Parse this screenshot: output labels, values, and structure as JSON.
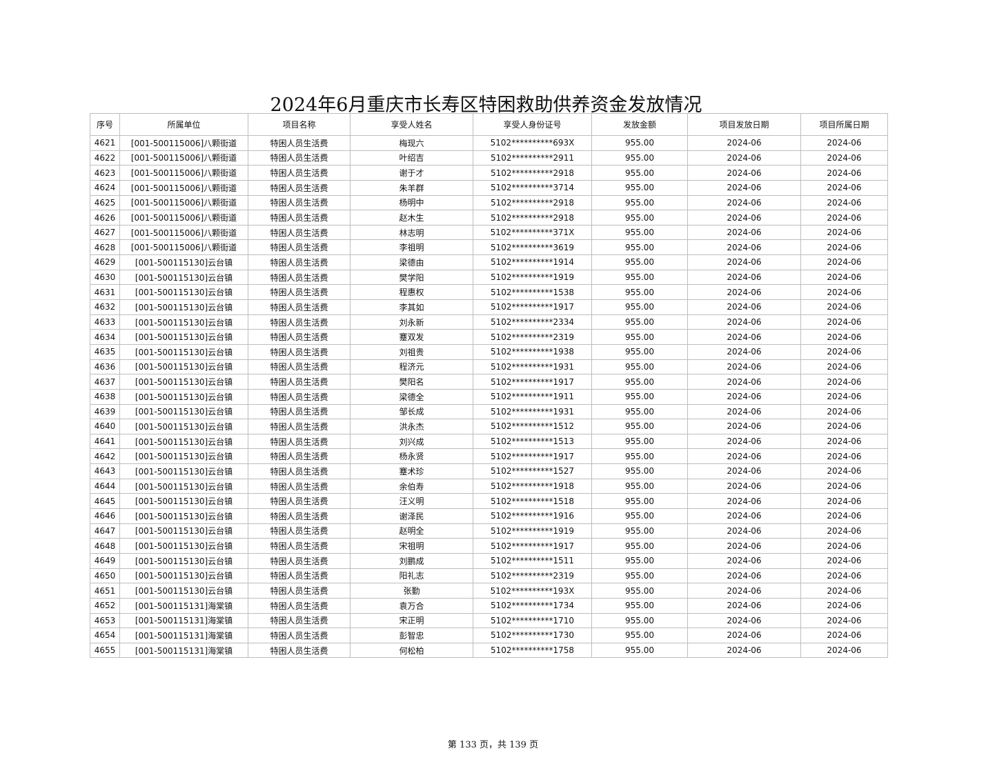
{
  "title": "2024年6月重庆市长寿区特困救助供养资金发放情况",
  "table": {
    "headers": [
      "序号",
      "所属单位",
      "项目名称",
      "享受人姓名",
      "享受人身份证号",
      "发放金额",
      "项目发放日期",
      "项目所属日期"
    ],
    "rows": [
      [
        "4621",
        "[001-500115006]八颗街道",
        "特困人员生活费",
        "梅现六",
        "5102**********693X",
        "955.00",
        "2024-06",
        "2024-06"
      ],
      [
        "4622",
        "[001-500115006]八颗街道",
        "特困人员生活费",
        "叶绍吉",
        "5102**********2911",
        "955.00",
        "2024-06",
        "2024-06"
      ],
      [
        "4623",
        "[001-500115006]八颗街道",
        "特困人员生活费",
        "谢于才",
        "5102**********2918",
        "955.00",
        "2024-06",
        "2024-06"
      ],
      [
        "4624",
        "[001-500115006]八颗街道",
        "特困人员生活费",
        "朱羊群",
        "5102**********3714",
        "955.00",
        "2024-06",
        "2024-06"
      ],
      [
        "4625",
        "[001-500115006]八颗街道",
        "特困人员生活费",
        "杨明中",
        "5102**********2918",
        "955.00",
        "2024-06",
        "2024-06"
      ],
      [
        "4626",
        "[001-500115006]八颗街道",
        "特困人员生活费",
        "赵木生",
        "5102**********2918",
        "955.00",
        "2024-06",
        "2024-06"
      ],
      [
        "4627",
        "[001-500115006]八颗街道",
        "特困人员生活费",
        "林志明",
        "5102**********371X",
        "955.00",
        "2024-06",
        "2024-06"
      ],
      [
        "4628",
        "[001-500115006]八颗街道",
        "特困人员生活费",
        "李祖明",
        "5102**********3619",
        "955.00",
        "2024-06",
        "2024-06"
      ],
      [
        "4629",
        "[001-500115130]云台镇",
        "特困人员生活费",
        "梁德由",
        "5102**********1914",
        "955.00",
        "2024-06",
        "2024-06"
      ],
      [
        "4630",
        "[001-500115130]云台镇",
        "特困人员生活费",
        "樊学阳",
        "5102**********1919",
        "955.00",
        "2024-06",
        "2024-06"
      ],
      [
        "4631",
        "[001-500115130]云台镇",
        "特困人员生活费",
        "程惠权",
        "5102**********1538",
        "955.00",
        "2024-06",
        "2024-06"
      ],
      [
        "4632",
        "[001-500115130]云台镇",
        "特困人员生活费",
        "李其如",
        "5102**********1917",
        "955.00",
        "2024-06",
        "2024-06"
      ],
      [
        "4633",
        "[001-500115130]云台镇",
        "特困人员生活费",
        "刘永新",
        "5102**********2334",
        "955.00",
        "2024-06",
        "2024-06"
      ],
      [
        "4634",
        "[001-500115130]云台镇",
        "特困人员生活费",
        "蹇双发",
        "5102**********2319",
        "955.00",
        "2024-06",
        "2024-06"
      ],
      [
        "4635",
        "[001-500115130]云台镇",
        "特困人员生活费",
        "刘祖贵",
        "5102**********1938",
        "955.00",
        "2024-06",
        "2024-06"
      ],
      [
        "4636",
        "[001-500115130]云台镇",
        "特困人员生活费",
        "程济元",
        "5102**********1931",
        "955.00",
        "2024-06",
        "2024-06"
      ],
      [
        "4637",
        "[001-500115130]云台镇",
        "特困人员生活费",
        "樊阳名",
        "5102**********1917",
        "955.00",
        "2024-06",
        "2024-06"
      ],
      [
        "4638",
        "[001-500115130]云台镇",
        "特困人员生活费",
        "梁德全",
        "5102**********1911",
        "955.00",
        "2024-06",
        "2024-06"
      ],
      [
        "4639",
        "[001-500115130]云台镇",
        "特困人员生活费",
        "邹长成",
        "5102**********1931",
        "955.00",
        "2024-06",
        "2024-06"
      ],
      [
        "4640",
        "[001-500115130]云台镇",
        "特困人员生活费",
        "洪永杰",
        "5102**********1512",
        "955.00",
        "2024-06",
        "2024-06"
      ],
      [
        "4641",
        "[001-500115130]云台镇",
        "特困人员生活费",
        "刘兴成",
        "5102**********1513",
        "955.00",
        "2024-06",
        "2024-06"
      ],
      [
        "4642",
        "[001-500115130]云台镇",
        "特困人员生活费",
        "杨永贤",
        "5102**********1917",
        "955.00",
        "2024-06",
        "2024-06"
      ],
      [
        "4643",
        "[001-500115130]云台镇",
        "特困人员生活费",
        "蹇术珍",
        "5102**********1527",
        "955.00",
        "2024-06",
        "2024-06"
      ],
      [
        "4644",
        "[001-500115130]云台镇",
        "特困人员生活费",
        "余伯寿",
        "5102**********1918",
        "955.00",
        "2024-06",
        "2024-06"
      ],
      [
        "4645",
        "[001-500115130]云台镇",
        "特困人员生活费",
        "汪义明",
        "5102**********1518",
        "955.00",
        "2024-06",
        "2024-06"
      ],
      [
        "4646",
        "[001-500115130]云台镇",
        "特困人员生活费",
        "谢泽民",
        "5102**********1916",
        "955.00",
        "2024-06",
        "2024-06"
      ],
      [
        "4647",
        "[001-500115130]云台镇",
        "特困人员生活费",
        "赵明全",
        "5102**********1919",
        "955.00",
        "2024-06",
        "2024-06"
      ],
      [
        "4648",
        "[001-500115130]云台镇",
        "特困人员生活费",
        "宋祖明",
        "5102**********1917",
        "955.00",
        "2024-06",
        "2024-06"
      ],
      [
        "4649",
        "[001-500115130]云台镇",
        "特困人员生活费",
        "刘鹏成",
        "5102**********1511",
        "955.00",
        "2024-06",
        "2024-06"
      ],
      [
        "4650",
        "[001-500115130]云台镇",
        "特困人员生活费",
        "阳礼志",
        "5102**********2319",
        "955.00",
        "2024-06",
        "2024-06"
      ],
      [
        "4651",
        "[001-500115130]云台镇",
        "特困人员生活费",
        "张勤",
        "5102**********193X",
        "955.00",
        "2024-06",
        "2024-06"
      ],
      [
        "4652",
        "[001-500115131]海棠镇",
        "特困人员生活费",
        "袁万合",
        "5102**********1734",
        "955.00",
        "2024-06",
        "2024-06"
      ],
      [
        "4653",
        "[001-500115131]海棠镇",
        "特困人员生活费",
        "宋正明",
        "5102**********1710",
        "955.00",
        "2024-06",
        "2024-06"
      ],
      [
        "4654",
        "[001-500115131]海棠镇",
        "特困人员生活费",
        "彭智忠",
        "5102**********1730",
        "955.00",
        "2024-06",
        "2024-06"
      ],
      [
        "4655",
        "[001-500115131]海棠镇",
        "特困人员生活费",
        "何松柏",
        "5102**********1758",
        "955.00",
        "2024-06",
        "2024-06"
      ]
    ]
  },
  "footer": "第 133 页，共 139 页"
}
